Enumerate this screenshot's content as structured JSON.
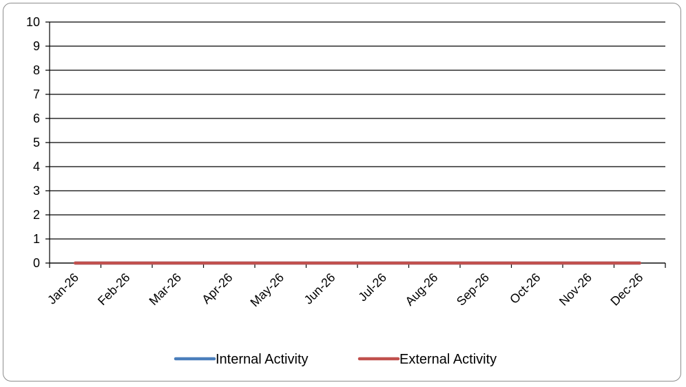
{
  "chart_data": {
    "type": "line",
    "categories": [
      "Jan-26",
      "Feb-26",
      "Mar-26",
      "Apr-26",
      "May-26",
      "Jun-26",
      "Jul-26",
      "Aug-26",
      "Sep-26",
      "Oct-26",
      "Nov-26",
      "Dec-26"
    ],
    "series": [
      {
        "name": "Internal Activity",
        "values": [
          0,
          0,
          0,
          0,
          0,
          0,
          0,
          0,
          0,
          0,
          0,
          0
        ],
        "color": "#4a7ebb"
      },
      {
        "name": "External Activity",
        "values": [
          0,
          0,
          0,
          0,
          0,
          0,
          0,
          0,
          0,
          0,
          0,
          0
        ],
        "color": "#c0504d"
      }
    ],
    "title": "",
    "xlabel": "",
    "ylabel": "",
    "ylim": [
      0,
      10
    ],
    "yticks": [
      "0",
      "1",
      "2",
      "3",
      "4",
      "5",
      "6",
      "7",
      "8",
      "9",
      "10"
    ],
    "grid": true,
    "legend_position": "bottom"
  }
}
